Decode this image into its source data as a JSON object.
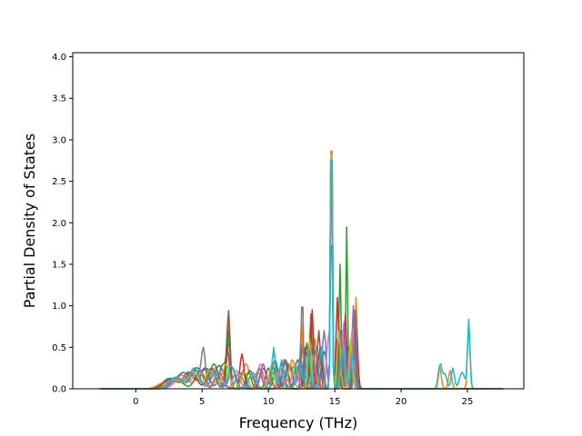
{
  "chart_data": {
    "type": "line",
    "title": "",
    "xlabel": "Frequency (THz)",
    "ylabel": "Partial Density of States",
    "xlim": [
      -4.75,
      29.25
    ],
    "ylim": [
      0.0,
      4.05
    ],
    "x_ticks": [
      0,
      5,
      10,
      15,
      20,
      25
    ],
    "y_ticks": [
      0.0,
      0.5,
      1.0,
      1.5,
      2.0,
      2.5,
      3.0,
      3.5,
      4.0
    ],
    "x_tick_labels": [
      "0",
      "5",
      "10",
      "15",
      "20",
      "25"
    ],
    "y_tick_labels": [
      "0.0",
      "0.5",
      "1.0",
      "1.5",
      "2.0",
      "2.5",
      "3.0",
      "3.5",
      "4.0"
    ],
    "grid": false,
    "legend": "none",
    "x_range": [
      -2.7,
      27.7
    ],
    "x_step": 0.1,
    "series": [
      {
        "color": "#1f77b4",
        "peaks": [
          [
            2.5,
            0.12,
            0.5
          ],
          [
            3.6,
            0.18,
            0.4
          ],
          [
            4.6,
            0.24,
            0.35
          ],
          [
            5.4,
            0.22,
            0.3
          ],
          [
            6.3,
            0.28,
            0.3
          ],
          [
            7.0,
            0.55,
            0.15
          ],
          [
            8.1,
            0.22,
            0.2
          ],
          [
            9.6,
            0.25,
            0.25
          ],
          [
            10.5,
            0.35,
            0.2
          ],
          [
            11.6,
            0.28,
            0.25
          ],
          [
            12.6,
            0.6,
            0.12
          ],
          [
            13.3,
            0.5,
            0.15
          ],
          [
            14.2,
            0.45,
            0.2
          ],
          [
            14.75,
            2.2,
            0.07
          ],
          [
            15.4,
            0.7,
            0.1
          ],
          [
            16.0,
            0.5,
            0.2
          ],
          [
            16.5,
            0.55,
            0.15
          ]
        ]
      },
      {
        "color": "#ff7f0e",
        "peaks": [
          [
            2.2,
            0.08,
            0.5
          ],
          [
            3.5,
            0.16,
            0.45
          ],
          [
            4.9,
            0.2,
            0.35
          ],
          [
            6.0,
            0.25,
            0.3
          ],
          [
            7.0,
            0.8,
            0.12
          ],
          [
            8.3,
            0.3,
            0.25
          ],
          [
            9.2,
            0.2,
            0.3
          ],
          [
            10.3,
            0.3,
            0.2
          ],
          [
            11.8,
            0.35,
            0.25
          ],
          [
            12.5,
            0.8,
            0.1
          ],
          [
            13.5,
            0.6,
            0.15
          ],
          [
            14.75,
            3.85,
            0.065
          ],
          [
            15.3,
            0.8,
            0.1
          ],
          [
            16.6,
            1.1,
            0.1
          ],
          [
            22.9,
            0.27,
            0.12
          ],
          [
            23.7,
            0.22,
            0.12
          ],
          [
            25.1,
            0.82,
            0.09
          ]
        ]
      },
      {
        "color": "#2ca02c",
        "peaks": [
          [
            3.0,
            0.12,
            0.5
          ],
          [
            4.8,
            0.2,
            0.35
          ],
          [
            5.9,
            0.3,
            0.3
          ],
          [
            7.0,
            0.7,
            0.12
          ],
          [
            8.5,
            0.2,
            0.2
          ],
          [
            10.6,
            0.28,
            0.2
          ],
          [
            12.2,
            0.35,
            0.2
          ],
          [
            13.2,
            0.9,
            0.1
          ],
          [
            14.0,
            0.5,
            0.15
          ],
          [
            14.75,
            3.75,
            0.065
          ],
          [
            15.4,
            1.5,
            0.08
          ],
          [
            15.9,
            1.95,
            0.07
          ],
          [
            16.5,
            0.6,
            0.12
          ]
        ]
      },
      {
        "color": "#d62728",
        "peaks": [
          [
            2.8,
            0.1,
            0.5
          ],
          [
            4.2,
            0.2,
            0.4
          ],
          [
            5.7,
            0.25,
            0.3
          ],
          [
            6.9,
            0.5,
            0.15
          ],
          [
            8.0,
            0.42,
            0.15
          ],
          [
            9.5,
            0.2,
            0.2
          ],
          [
            11.0,
            0.3,
            0.2
          ],
          [
            12.8,
            0.5,
            0.15
          ],
          [
            13.3,
            0.95,
            0.1
          ],
          [
            13.9,
            0.5,
            0.15
          ],
          [
            14.75,
            3.5,
            0.065
          ],
          [
            15.2,
            1.1,
            0.1
          ],
          [
            15.8,
            0.9,
            0.1
          ],
          [
            16.6,
            0.8,
            0.12
          ]
        ]
      },
      {
        "color": "#9467bd",
        "peaks": [
          [
            3.2,
            0.13,
            0.45
          ],
          [
            4.5,
            0.22,
            0.35
          ],
          [
            6.0,
            0.22,
            0.3
          ],
          [
            7.3,
            0.25,
            0.25
          ],
          [
            9.6,
            0.3,
            0.2
          ],
          [
            10.4,
            0.45,
            0.15
          ],
          [
            11.5,
            0.3,
            0.25
          ],
          [
            12.4,
            0.4,
            0.15
          ],
          [
            14.2,
            0.7,
            0.15
          ],
          [
            14.75,
            3.0,
            0.07
          ],
          [
            15.7,
            0.8,
            0.12
          ],
          [
            16.4,
            1.0,
            0.1
          ]
        ]
      },
      {
        "color": "#8c564b",
        "peaks": [
          [
            2.6,
            0.11,
            0.5
          ],
          [
            4.0,
            0.2,
            0.4
          ],
          [
            5.2,
            0.25,
            0.3
          ],
          [
            6.6,
            0.3,
            0.3
          ],
          [
            7.0,
            0.82,
            0.11
          ],
          [
            8.6,
            0.22,
            0.25
          ],
          [
            10.0,
            0.25,
            0.2
          ],
          [
            11.3,
            0.35,
            0.2
          ],
          [
            12.9,
            0.55,
            0.15
          ],
          [
            13.8,
            0.7,
            0.12
          ],
          [
            14.75,
            3.3,
            0.065
          ],
          [
            15.2,
            0.6,
            0.12
          ],
          [
            16.5,
            0.9,
            0.1
          ]
        ]
      },
      {
        "color": "#e377c2",
        "peaks": [
          [
            3.4,
            0.12,
            0.5
          ],
          [
            4.7,
            0.22,
            0.35
          ],
          [
            6.2,
            0.2,
            0.3
          ],
          [
            7.6,
            0.22,
            0.25
          ],
          [
            9.4,
            0.3,
            0.2
          ],
          [
            10.9,
            0.25,
            0.2
          ],
          [
            12.0,
            0.3,
            0.2
          ],
          [
            13.4,
            0.4,
            0.15
          ],
          [
            14.5,
            0.6,
            0.12
          ],
          [
            14.75,
            2.8,
            0.07
          ],
          [
            15.6,
            0.7,
            0.12
          ],
          [
            16.3,
            0.7,
            0.12
          ]
        ]
      },
      {
        "color": "#7f7f7f",
        "peaks": [
          [
            3.1,
            0.12,
            0.5
          ],
          [
            4.5,
            0.22,
            0.35
          ],
          [
            5.1,
            0.45,
            0.15
          ],
          [
            6.3,
            0.2,
            0.3
          ],
          [
            7.8,
            0.2,
            0.25
          ],
          [
            9.3,
            0.25,
            0.2
          ],
          [
            11.2,
            0.35,
            0.2
          ],
          [
            12.55,
            1.27,
            0.07
          ],
          [
            13.6,
            0.5,
            0.15
          ],
          [
            14.75,
            3.6,
            0.065
          ],
          [
            15.5,
            0.6,
            0.12
          ],
          [
            16.55,
            1.1,
            0.09
          ]
        ]
      },
      {
        "color": "#bcbd22",
        "peaks": [
          [
            2.9,
            0.11,
            0.5
          ],
          [
            4.3,
            0.2,
            0.4
          ],
          [
            5.6,
            0.22,
            0.3
          ],
          [
            6.8,
            0.3,
            0.25
          ],
          [
            8.2,
            0.2,
            0.25
          ],
          [
            10.2,
            0.25,
            0.2
          ],
          [
            11.7,
            0.3,
            0.2
          ],
          [
            13.1,
            0.6,
            0.12
          ],
          [
            14.75,
            3.8,
            0.065
          ],
          [
            15.3,
            0.7,
            0.12
          ],
          [
            16.2,
            0.6,
            0.12
          ]
        ]
      },
      {
        "color": "#17becf",
        "peaks": [
          [
            3.0,
            0.14,
            0.45
          ],
          [
            4.4,
            0.25,
            0.35
          ],
          [
            5.8,
            0.22,
            0.3
          ],
          [
            7.2,
            0.28,
            0.25
          ],
          [
            8.8,
            0.2,
            0.25
          ],
          [
            10.4,
            0.5,
            0.12
          ],
          [
            11.0,
            0.35,
            0.15
          ],
          [
            12.3,
            0.3,
            0.2
          ],
          [
            13.0,
            0.45,
            0.15
          ],
          [
            14.0,
            0.5,
            0.15
          ],
          [
            14.75,
            3.7,
            0.065
          ],
          [
            15.6,
            0.5,
            0.15
          ],
          [
            16.3,
            0.4,
            0.15
          ],
          [
            22.95,
            0.3,
            0.12
          ],
          [
            23.3,
            0.18,
            0.15
          ],
          [
            23.9,
            0.25,
            0.12
          ],
          [
            24.6,
            0.2,
            0.2
          ],
          [
            25.1,
            0.83,
            0.09
          ]
        ]
      }
    ]
  }
}
